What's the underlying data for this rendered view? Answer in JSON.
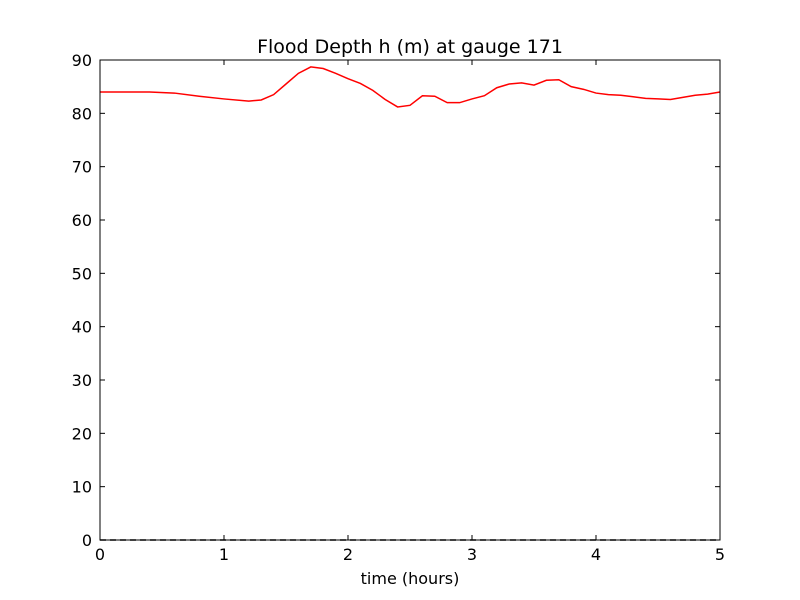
{
  "chart_data": {
    "type": "line",
    "title": "Flood Depth h (m) at gauge 171",
    "x_label": "time (hours)",
    "series": [
      {
        "color": "#ff0000",
        "line_style": "solid",
        "x": [
          0,
          0.4,
          0.6,
          0.8,
          1.0,
          1.2,
          1.3,
          1.4,
          1.5,
          1.6,
          1.7,
          1.8,
          1.9,
          2.0,
          2.1,
          2.2,
          2.3,
          2.4,
          2.5,
          2.6,
          2.7,
          2.8,
          2.9,
          3.0,
          3.1,
          3.2,
          3.3,
          3.4,
          3.5,
          3.6,
          3.7,
          3.8,
          3.9,
          4.0,
          4.1,
          4.2,
          4.3,
          4.4,
          4.5,
          4.6,
          4.7,
          4.8,
          4.9,
          5.0
        ],
        "values": [
          84,
          84,
          83.8,
          83.2,
          82.7,
          82.3,
          82.5,
          83.5,
          85.5,
          87.5,
          88.7,
          88.4,
          87.5,
          86.5,
          85.6,
          84.3,
          82.6,
          81.2,
          81.5,
          83.3,
          83.2,
          82.0,
          82.0,
          82.7,
          83.3,
          84.8,
          85.5,
          85.7,
          85.3,
          86.2,
          86.3,
          85.0,
          84.5,
          83.8,
          83.5,
          83.4,
          83.1,
          82.8,
          82.7,
          82.6,
          83.0,
          83.4,
          83.6,
          84.0
        ]
      },
      {
        "color": "#000000",
        "line_style": "dashed",
        "x": [
          0,
          5
        ],
        "values": [
          0,
          0
        ]
      }
    ],
    "xlim": [
      0,
      5
    ],
    "xticks": [
      0,
      1,
      2,
      3,
      4,
      5
    ],
    "ylim": [
      0,
      90
    ],
    "yticks": [
      0,
      10,
      20,
      30,
      40,
      50,
      60,
      70,
      80,
      90
    ],
    "grid": false
  }
}
